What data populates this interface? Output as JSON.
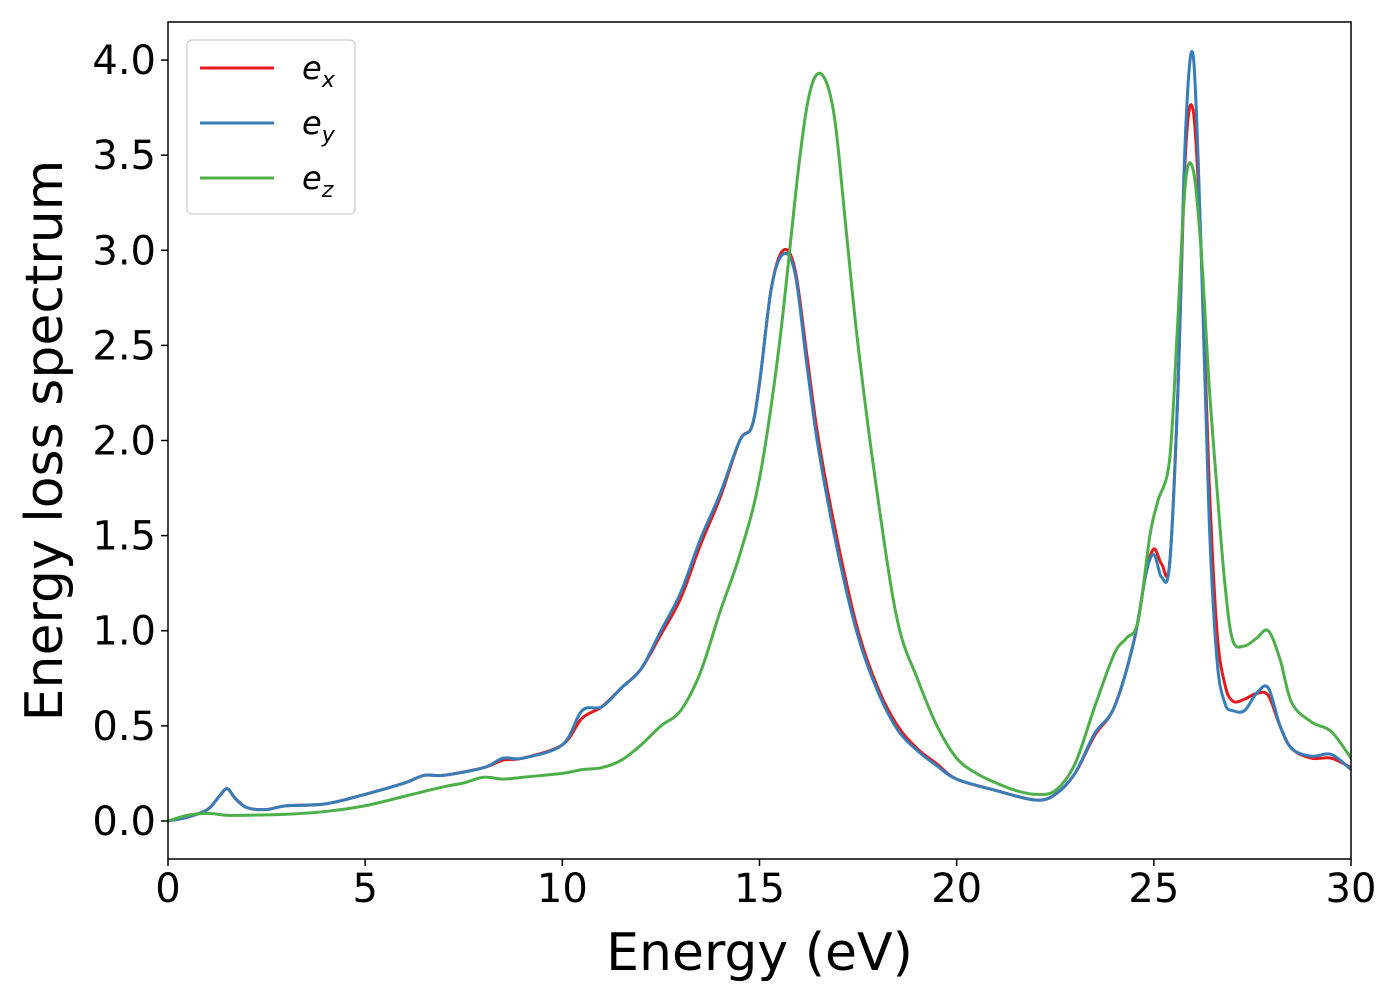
{
  "chart_data": {
    "type": "line",
    "xlabel": "Energy (eV)",
    "ylabel": "Energy loss spectrum",
    "xlim": [
      0,
      30
    ],
    "ylim": [
      -0.2,
      4.2
    ],
    "xticks": [
      0,
      5,
      10,
      15,
      20,
      25,
      30
    ],
    "xtick_labels": [
      "0",
      "5",
      "10",
      "15",
      "20",
      "25",
      "30"
    ],
    "yticks": [
      0.0,
      0.5,
      1.0,
      1.5,
      2.0,
      2.5,
      3.0,
      3.5,
      4.0
    ],
    "ytick_labels": [
      "0.0",
      "0.5",
      "1.0",
      "1.5",
      "2.0",
      "2.5",
      "3.0",
      "3.5",
      "4.0"
    ],
    "grid": false,
    "legend_position": "top-left",
    "series": [
      {
        "name": "e_x",
        "label_base": "e",
        "label_sub": "x",
        "color": "#e41a1c",
        "x": [
          0,
          0.5,
          1.0,
          1.3,
          1.5,
          1.7,
          2.0,
          2.5,
          3.0,
          4.0,
          5.0,
          6.0,
          6.5,
          7.0,
          8.0,
          8.5,
          9.0,
          10.0,
          10.5,
          11.0,
          11.5,
          12.0,
          12.5,
          13.0,
          13.5,
          14.0,
          14.5,
          14.8,
          15.0,
          15.3,
          15.6,
          15.9,
          16.2,
          16.5,
          17.0,
          17.5,
          18.0,
          18.5,
          19.0,
          19.5,
          20.0,
          21.0,
          22.0,
          22.5,
          23.0,
          23.5,
          24.0,
          24.5,
          24.8,
          25.0,
          25.2,
          25.4,
          25.6,
          25.8,
          26.0,
          26.2,
          26.4,
          26.6,
          26.8,
          27.0,
          27.3,
          27.6,
          27.9,
          28.2,
          28.5,
          29.0,
          29.5,
          30.0
        ],
        "y": [
          0.0,
          0.02,
          0.06,
          0.13,
          0.17,
          0.12,
          0.07,
          0.06,
          0.08,
          0.09,
          0.14,
          0.2,
          0.24,
          0.24,
          0.28,
          0.32,
          0.33,
          0.4,
          0.54,
          0.6,
          0.7,
          0.8,
          0.98,
          1.17,
          1.45,
          1.7,
          2.0,
          2.07,
          2.3,
          2.8,
          3.0,
          2.9,
          2.45,
          2.0,
          1.45,
          1.0,
          0.7,
          0.5,
          0.38,
          0.3,
          0.22,
          0.16,
          0.11,
          0.14,
          0.25,
          0.45,
          0.6,
          0.95,
          1.3,
          1.43,
          1.35,
          1.35,
          2.2,
          3.5,
          3.73,
          3.0,
          1.8,
          1.0,
          0.72,
          0.63,
          0.64,
          0.67,
          0.66,
          0.5,
          0.38,
          0.33,
          0.33,
          0.28
        ]
      },
      {
        "name": "e_y",
        "label_base": "e",
        "label_sub": "y",
        "color": "#377eb8",
        "x": [
          0,
          0.5,
          1.0,
          1.3,
          1.5,
          1.7,
          2.0,
          2.5,
          3.0,
          4.0,
          5.0,
          6.0,
          6.5,
          7.0,
          8.0,
          8.5,
          9.0,
          10.0,
          10.5,
          11.0,
          11.5,
          12.0,
          12.5,
          13.0,
          13.5,
          14.0,
          14.5,
          14.8,
          15.0,
          15.3,
          15.6,
          15.9,
          16.2,
          16.5,
          17.0,
          17.5,
          18.0,
          18.5,
          19.0,
          19.5,
          20.0,
          21.0,
          22.0,
          22.5,
          23.0,
          23.5,
          24.0,
          24.5,
          24.8,
          25.0,
          25.2,
          25.4,
          25.6,
          25.8,
          26.0,
          26.2,
          26.4,
          26.6,
          26.8,
          27.0,
          27.3,
          27.6,
          27.9,
          28.2,
          28.5,
          29.0,
          29.5,
          30.0
        ],
        "y": [
          0.0,
          0.02,
          0.06,
          0.13,
          0.17,
          0.12,
          0.07,
          0.06,
          0.08,
          0.09,
          0.14,
          0.2,
          0.24,
          0.24,
          0.28,
          0.33,
          0.33,
          0.4,
          0.58,
          0.6,
          0.7,
          0.8,
          1.0,
          1.2,
          1.48,
          1.72,
          2.0,
          2.07,
          2.3,
          2.8,
          2.98,
          2.88,
          2.4,
          1.95,
          1.4,
          0.97,
          0.68,
          0.48,
          0.37,
          0.29,
          0.22,
          0.16,
          0.11,
          0.14,
          0.25,
          0.46,
          0.6,
          0.95,
          1.3,
          1.4,
          1.28,
          1.35,
          2.2,
          3.6,
          4.02,
          3.0,
          1.6,
          0.85,
          0.62,
          0.58,
          0.58,
          0.67,
          0.7,
          0.5,
          0.38,
          0.34,
          0.35,
          0.27
        ]
      },
      {
        "name": "e_z",
        "label_base": "e",
        "label_sub": "z",
        "color": "#4daf4a",
        "x": [
          0,
          0.5,
          1.0,
          1.5,
          2.0,
          3.0,
          4.0,
          5.0,
          6.0,
          7.0,
          7.5,
          8.0,
          8.5,
          9.0,
          10.0,
          10.5,
          11.0,
          11.5,
          12.0,
          12.5,
          13.0,
          13.5,
          14.0,
          14.5,
          15.0,
          15.5,
          16.0,
          16.3,
          16.6,
          16.9,
          17.2,
          17.5,
          18.0,
          18.5,
          19.0,
          19.5,
          20.0,
          20.5,
          21.0,
          21.5,
          22.0,
          22.5,
          23.0,
          23.5,
          24.0,
          24.3,
          24.6,
          24.9,
          25.1,
          25.4,
          25.6,
          25.8,
          26.0,
          26.2,
          26.4,
          26.6,
          26.8,
          27.0,
          27.3,
          27.6,
          27.9,
          28.2,
          28.5,
          29.0,
          29.5,
          30.0
        ],
        "y": [
          0.0,
          0.03,
          0.04,
          0.03,
          0.03,
          0.035,
          0.05,
          0.08,
          0.13,
          0.18,
          0.2,
          0.23,
          0.22,
          0.23,
          0.25,
          0.27,
          0.28,
          0.32,
          0.4,
          0.5,
          0.58,
          0.78,
          1.1,
          1.4,
          1.8,
          2.5,
          3.45,
          3.85,
          3.92,
          3.7,
          3.1,
          2.5,
          1.7,
          1.05,
          0.75,
          0.5,
          0.33,
          0.25,
          0.2,
          0.16,
          0.14,
          0.16,
          0.3,
          0.6,
          0.88,
          0.96,
          1.05,
          1.5,
          1.68,
          1.9,
          2.6,
          3.35,
          3.42,
          3.0,
          2.3,
          1.75,
          1.25,
          0.95,
          0.92,
          0.96,
          1.0,
          0.85,
          0.62,
          0.52,
          0.47,
          0.33
        ]
      }
    ]
  }
}
